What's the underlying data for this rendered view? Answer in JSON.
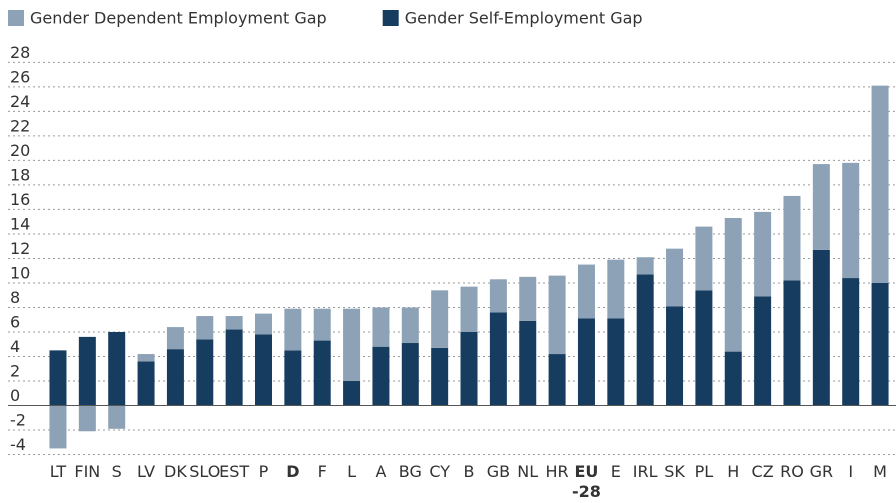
{
  "chart_data": {
    "type": "stacked-bar",
    "categories": [
      "LT",
      "FIN",
      "S",
      "LV",
      "DK",
      "SLO",
      "EST",
      "P",
      "D",
      "F",
      "L",
      "A",
      "BG",
      "CY",
      "B",
      "GB",
      "NL",
      "HR",
      "EU\n-28",
      "E",
      "IRL",
      "SK",
      "PL",
      "H",
      "CZ",
      "RO",
      "GR",
      "I",
      "M"
    ],
    "emphasized_categories": [
      8,
      18
    ],
    "series": [
      {
        "name": "Gender Self-Employment Gap",
        "color": "#163d5f",
        "values": [
          4.5,
          5.6,
          6.0,
          3.6,
          4.6,
          5.4,
          6.2,
          5.8,
          4.5,
          5.3,
          2.0,
          4.8,
          5.1,
          4.7,
          6.0,
          7.6,
          6.9,
          4.2,
          7.1,
          7.1,
          10.7,
          8.1,
          9.4,
          4.4,
          8.9,
          10.2,
          12.7,
          10.4,
          10.0
        ]
      },
      {
        "name": "Gender Dependent Employment Gap",
        "color": "#8da2b7",
        "values": [
          -3.5,
          -2.1,
          -1.9,
          0.6,
          1.8,
          1.9,
          1.1,
          1.7,
          3.4,
          2.6,
          5.9,
          3.2,
          2.9,
          4.7,
          3.7,
          2.7,
          3.6,
          6.4,
          4.4,
          4.8,
          1.4,
          4.7,
          5.2,
          10.9,
          6.9,
          6.9,
          7.0,
          9.4,
          16.1
        ]
      }
    ],
    "legend_order": [
      1,
      0
    ],
    "ylim": [
      -4.2,
      28.6
    ],
    "yticks": [
      -4,
      -2,
      0,
      2,
      4,
      6,
      8,
      10,
      12,
      14,
      16,
      18,
      20,
      22,
      24,
      26,
      28
    ],
    "grid": true
  }
}
